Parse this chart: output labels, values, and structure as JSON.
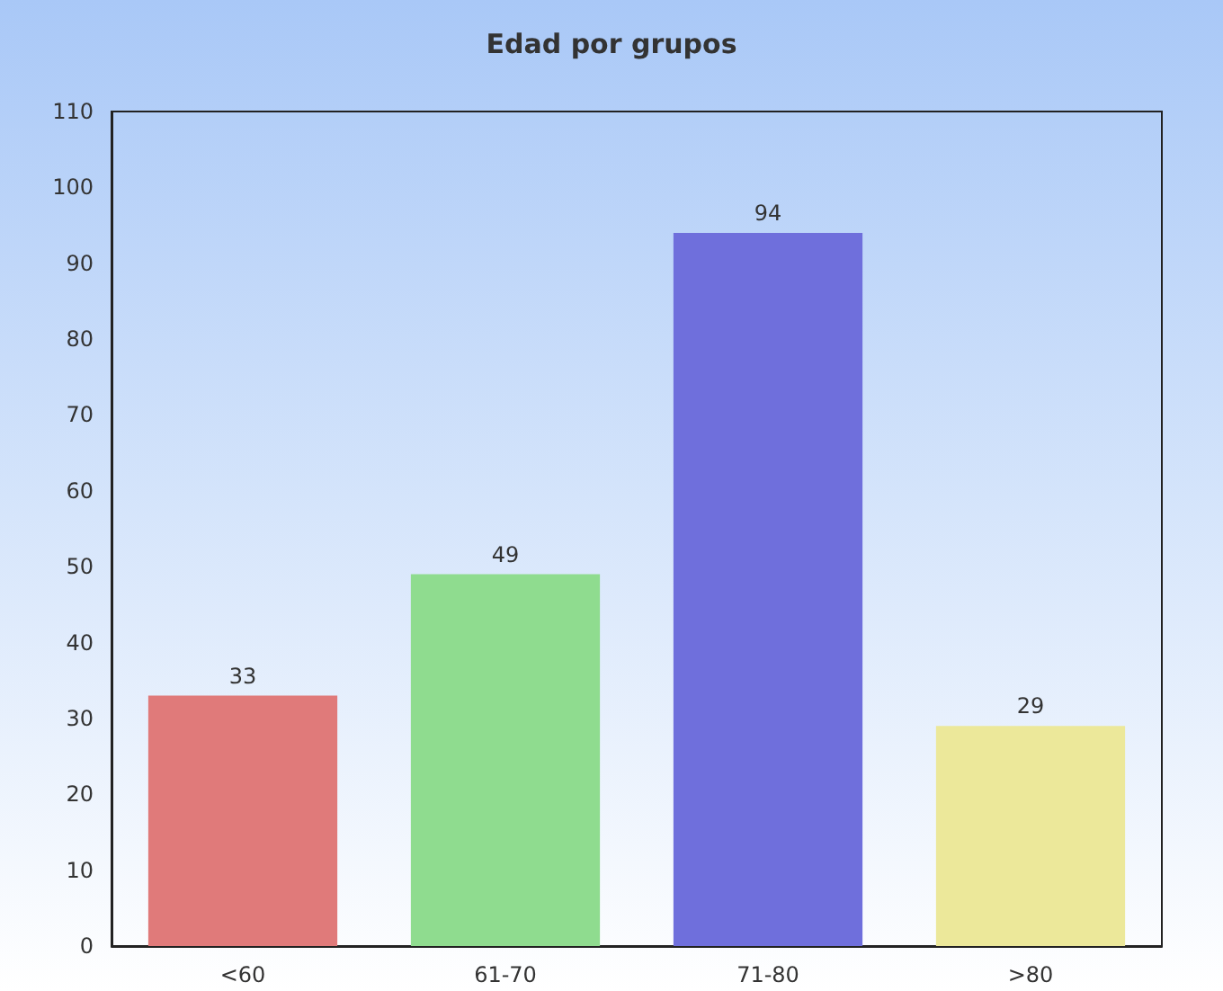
{
  "chart_data": {
    "type": "bar",
    "title": "Edad por grupos",
    "categories": [
      "<60",
      "61-70",
      "71-80",
      ">80"
    ],
    "values": [
      33,
      49,
      94,
      29
    ],
    "colors": [
      "#e07a7a",
      "#8fdc8f",
      "#6f6fdc",
      "#ece89a"
    ],
    "ylim": [
      0,
      110
    ],
    "yticks": [
      0,
      10,
      20,
      30,
      40,
      50,
      60,
      70,
      80,
      90,
      100,
      110
    ],
    "data_labels": true
  }
}
